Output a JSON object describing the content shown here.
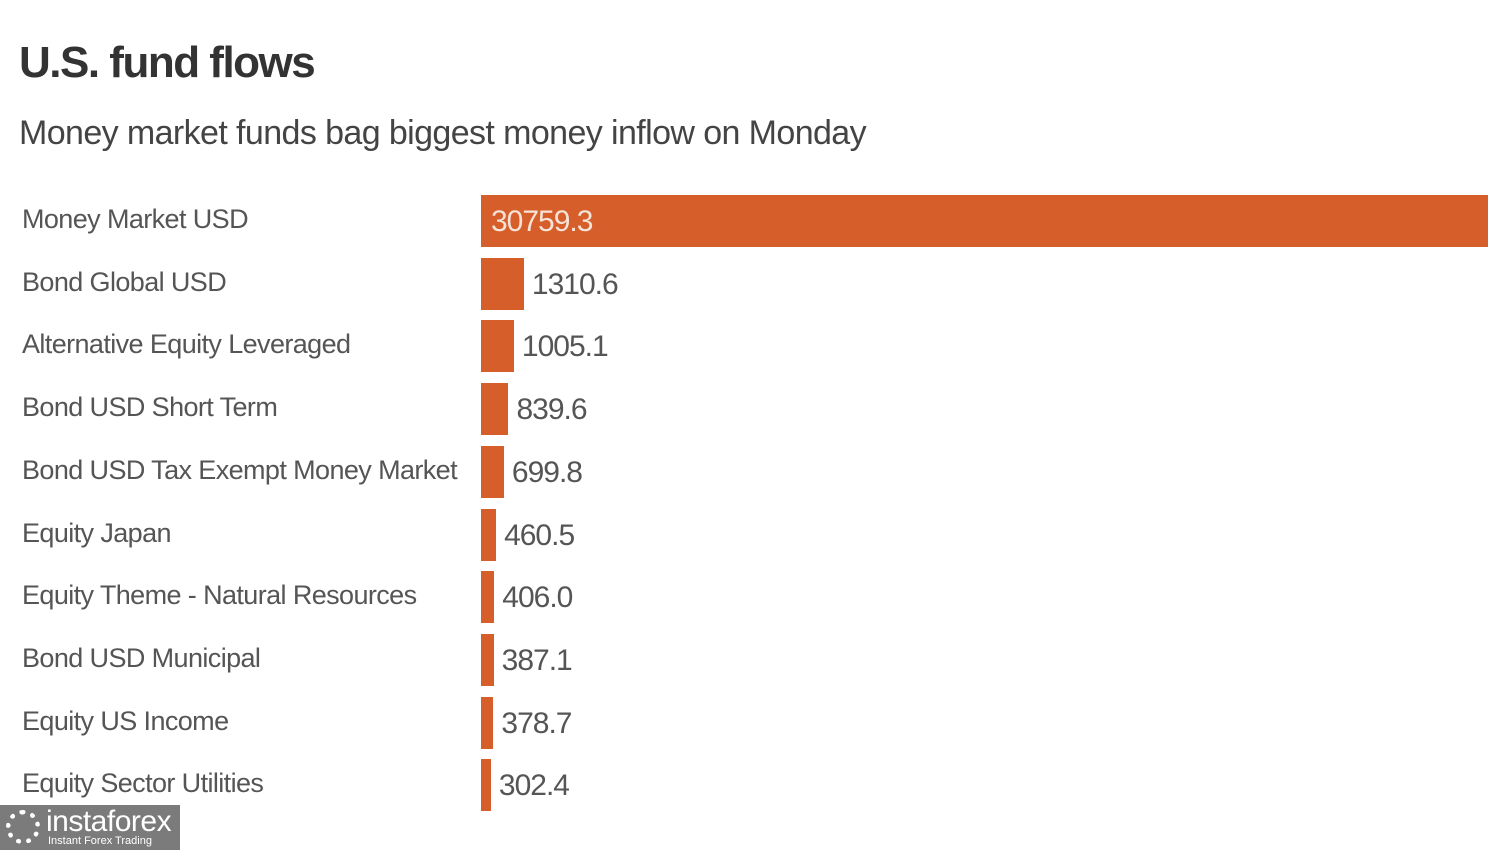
{
  "chart_data": {
    "type": "bar",
    "orientation": "horizontal",
    "title": "U.S. fund flows",
    "subtitle": "Money market funds bag biggest money inflow on Monday",
    "categories": [
      "Money Market USD",
      "Bond Global USD",
      "Alternative Equity Leveraged",
      "Bond USD Short Term",
      "Bond USD Tax Exempt Money Market",
      "Equity Japan",
      "Equity Theme - Natural Resources",
      "Bond USD Municipal",
      "Equity US Income",
      "Equity Sector Utilities"
    ],
    "values": [
      30759.3,
      1310.6,
      1005.1,
      839.6,
      699.8,
      460.5,
      406.0,
      387.1,
      378.7,
      302.4
    ],
    "value_labels": [
      "30759.3",
      "1310.6",
      "1005.1",
      "839.6",
      "699.8",
      "460.5",
      "406.0",
      "387.1",
      "378.7",
      "302.4"
    ],
    "xlim": [
      0,
      30759.3
    ],
    "grid": false,
    "bar_color": "#d55e2a"
  },
  "watermark": {
    "name": "instaforex",
    "tagline": "Instant Forex Trading"
  }
}
